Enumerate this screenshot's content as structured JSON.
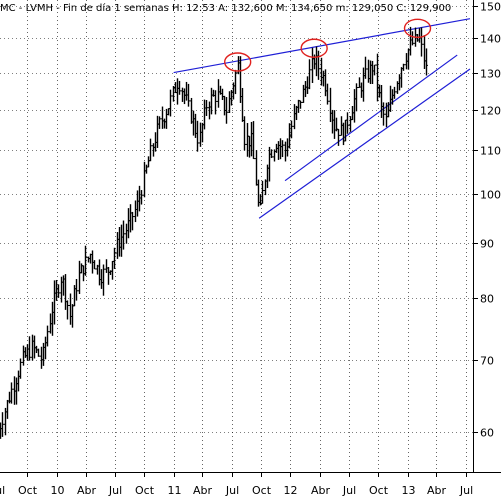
{
  "header": {
    "text": "MC - LVMH - Fin de día 1 semanas  H: 12:53  A: 132,600  M: 134,650  m: 129,050  C: 129,900"
  },
  "colors": {
    "background": "#ffffff",
    "price_bars": "#000000",
    "grid": "#000000",
    "trendlines": "#1f1fd6",
    "highlight_circles": "#e0221f"
  },
  "chart_data": {
    "type": "bar",
    "style": "OHLC weekly bars",
    "symbol": "MC",
    "name": "LVMH",
    "period": "Fin de día 1 semanas",
    "last_bar": {
      "open": 132.6,
      "high": 134.65,
      "low": 129.05,
      "close": 129.9
    },
    "y_scale": "log",
    "ylim": [
      55,
      152
    ],
    "y_ticks": [
      60,
      70,
      80,
      90,
      100,
      110,
      120,
      130,
      140,
      150
    ],
    "x_range": [
      "2009-07-01",
      "2013-07-15"
    ],
    "x_ticks": [
      {
        "label": "Jul",
        "date": "2009-07-01"
      },
      {
        "label": "Oct",
        "date": "2009-10-01"
      },
      {
        "label": "10",
        "date": "2010-01-01"
      },
      {
        "label": "Abr",
        "date": "2010-04-01"
      },
      {
        "label": "Jul",
        "date": "2010-07-01"
      },
      {
        "label": "Oct",
        "date": "2010-10-01"
      },
      {
        "label": "11",
        "date": "2011-01-01"
      },
      {
        "label": "Abr",
        "date": "2011-04-01"
      },
      {
        "label": "Jul",
        "date": "2011-07-01"
      },
      {
        "label": "Oct",
        "date": "2011-10-01"
      },
      {
        "label": "12",
        "date": "2012-01-01"
      },
      {
        "label": "Abr",
        "date": "2012-04-01"
      },
      {
        "label": "Jul",
        "date": "2012-07-01"
      },
      {
        "label": "Oct",
        "date": "2012-10-01"
      },
      {
        "label": "13",
        "date": "2013-01-01"
      },
      {
        "label": "Abr",
        "date": "2013-04-01"
      },
      {
        "label": "Jul",
        "date": "2013-07-01"
      }
    ],
    "grid": "dotted horizontal and vertical",
    "price_path": [
      [
        "2009-07-01",
        60
      ],
      [
        "2009-08-15",
        66
      ],
      [
        "2009-09-15",
        70
      ],
      [
        "2009-10-15",
        72
      ],
      [
        "2009-11-15",
        70
      ],
      [
        "2009-12-15",
        78
      ],
      [
        "2010-01-15",
        84
      ],
      [
        "2010-02-10",
        77
      ],
      [
        "2010-03-10",
        84
      ],
      [
        "2010-04-15",
        88
      ],
      [
        "2010-05-15",
        84
      ],
      [
        "2010-06-10",
        85
      ],
      [
        "2010-07-10",
        90
      ],
      [
        "2010-08-15",
        94
      ],
      [
        "2010-09-10",
        98
      ],
      [
        "2010-10-15",
        108
      ],
      [
        "2010-11-15",
        116
      ],
      [
        "2010-12-15",
        121
      ],
      [
        "2011-01-15",
        128
      ],
      [
        "2011-02-10",
        122
      ],
      [
        "2011-03-05",
        116
      ],
      [
        "2011-03-20",
        112
      ],
      [
        "2011-04-15",
        122
      ],
      [
        "2011-05-15",
        124
      ],
      [
        "2011-06-15",
        120
      ],
      [
        "2011-07-20",
        132
      ],
      [
        "2011-08-10",
        113
      ],
      [
        "2011-09-01",
        112
      ],
      [
        "2011-09-25",
        95
      ],
      [
        "2011-10-20",
        108
      ],
      [
        "2011-11-15",
        112
      ],
      [
        "2011-12-15",
        110
      ],
      [
        "2012-01-15",
        119
      ],
      [
        "2012-02-15",
        126
      ],
      [
        "2012-03-15",
        134
      ],
      [
        "2012-04-15",
        128
      ],
      [
        "2012-05-15",
        116
      ],
      [
        "2012-06-15",
        114
      ],
      [
        "2012-07-15",
        122
      ],
      [
        "2012-08-15",
        128
      ],
      [
        "2012-09-15",
        132
      ],
      [
        "2012-10-10",
        120
      ],
      [
        "2012-10-25",
        117
      ],
      [
        "2012-11-20",
        126
      ],
      [
        "2012-12-20",
        134
      ],
      [
        "2013-01-10",
        138
      ],
      [
        "2013-02-05",
        140
      ],
      [
        "2013-02-20",
        134
      ],
      [
        "2013-03-01",
        130
      ]
    ],
    "trendlines": [
      {
        "from": [
          "2011-01-01",
          130
        ],
        "to": [
          "2013-07-15",
          146
        ]
      },
      {
        "from": [
          "2011-09-25",
          95
        ],
        "to": [
          "2013-07-15",
          131
        ]
      },
      {
        "from": [
          "2011-12-15",
          103
        ],
        "to": [
          "2013-06-05",
          135
        ]
      }
    ],
    "circles": [
      {
        "date": "2011-07-20",
        "value": 133
      },
      {
        "date": "2012-03-15",
        "value": 137
      },
      {
        "date": "2013-02-01",
        "value": 143
      }
    ]
  }
}
